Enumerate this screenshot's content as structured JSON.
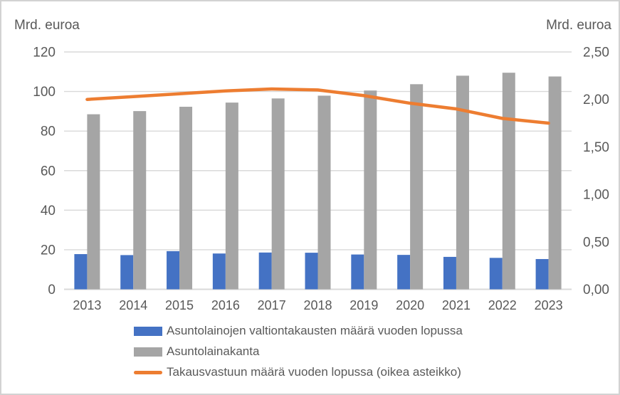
{
  "chart_data": {
    "type": "bar",
    "subtype": "grouped-bars-with-line-combo",
    "categories": [
      "2013",
      "2014",
      "2015",
      "2016",
      "2017",
      "2018",
      "2019",
      "2020",
      "2021",
      "2022",
      "2023"
    ],
    "series": [
      {
        "name": "Asuntolainojen valtiontakausten määrä vuoden lopussa",
        "type": "bar",
        "axis": "left",
        "color": "#4472C4",
        "values": [
          17.8,
          17.3,
          19.3,
          18.1,
          18.6,
          18.5,
          17.6,
          17.4,
          16.4,
          15.9,
          15.3
        ]
      },
      {
        "name": "Asuntolainakanta",
        "type": "bar",
        "axis": "left",
        "color": "#A5A5A5",
        "values": [
          88.5,
          90.1,
          92.3,
          94.4,
          96.5,
          97.9,
          100.5,
          103.7,
          108.0,
          109.5,
          107.6
        ]
      },
      {
        "name": "Takausvastuun määrä vuoden lopussa (oikea asteikko)",
        "type": "line",
        "axis": "right",
        "color": "#ED7D31",
        "values": [
          2.0,
          2.03,
          2.06,
          2.09,
          2.11,
          2.1,
          2.04,
          1.96,
          1.9,
          1.8,
          1.75
        ]
      }
    ],
    "left_axis": {
      "title": "Mrd. euroa",
      "min": 0,
      "max": 120,
      "tick_step": 20,
      "ticks": [
        {
          "value": 0,
          "label": "0"
        },
        {
          "value": 20,
          "label": "20"
        },
        {
          "value": 40,
          "label": "40"
        },
        {
          "value": 60,
          "label": "60"
        },
        {
          "value": 80,
          "label": "80"
        },
        {
          "value": 100,
          "label": "100"
        },
        {
          "value": 120,
          "label": "120"
        }
      ]
    },
    "right_axis": {
      "title": "Mrd. euroa",
      "min": 0,
      "max": 2.5,
      "tick_step": 0.5,
      "ticks": [
        {
          "value": 0.0,
          "label": "0,00"
        },
        {
          "value": 0.5,
          "label": "0,50"
        },
        {
          "value": 1.0,
          "label": "1,00"
        },
        {
          "value": 1.5,
          "label": "1,50"
        },
        {
          "value": 2.0,
          "label": "2,00"
        },
        {
          "value": 2.5,
          "label": "2,50"
        }
      ]
    },
    "grid": true,
    "legend_position": "bottom",
    "colors": {
      "gridline": "#d9d9d9",
      "baseline": "#d9d9d9",
      "tick_text": "#595959",
      "axis_title_text": "#595959"
    }
  }
}
